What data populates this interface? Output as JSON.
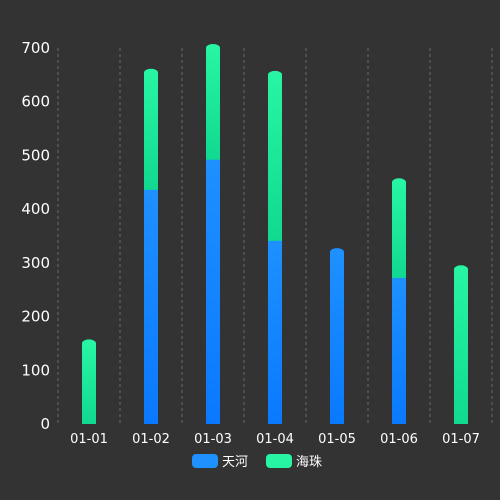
{
  "chart_data": {
    "type": "bar",
    "stacked": true,
    "categories": [
      "01-01",
      "01-02",
      "01-03",
      "01-04",
      "01-05",
      "01-06",
      "01-07"
    ],
    "series": [
      {
        "name": "天河",
        "values": [
          0,
          436,
          492,
          341,
          320,
          272,
          0
        ],
        "color_top": "#1e90ff",
        "color_bottom": "#0a79ff"
      },
      {
        "name": "海珠",
        "values": [
          150,
          218,
          208,
          309,
          0,
          178,
          288
        ],
        "color_top": "#27f5a3",
        "color_bottom": "#11d990"
      }
    ],
    "ylim": [
      0,
      700
    ],
    "yticks": [
      0,
      100,
      200,
      300,
      400,
      500,
      600,
      700
    ],
    "grid": "vertical dashed separators",
    "legend_position": "bottom-center",
    "background": "#333333"
  }
}
